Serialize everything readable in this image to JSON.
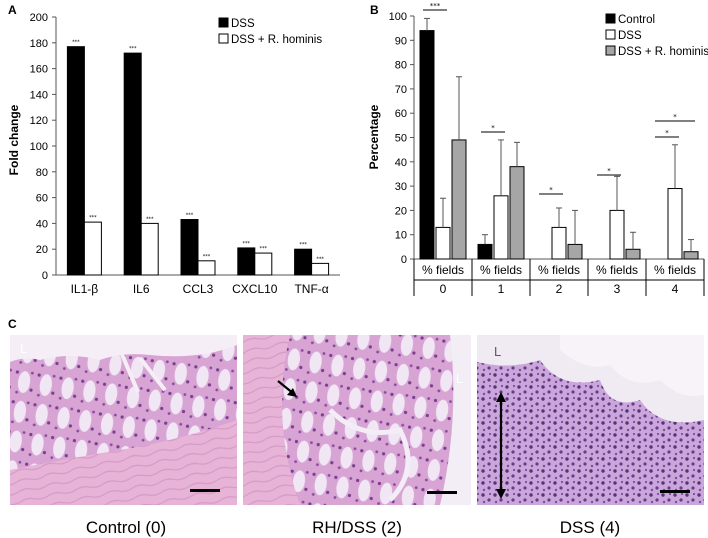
{
  "chart_data": [
    {
      "panel": "A",
      "type": "bar",
      "ylabel": "Fold change",
      "ylim": [
        0,
        200
      ],
      "yticks": [
        "0",
        "20",
        "40",
        "60",
        "80",
        "100",
        "120",
        "140",
        "160",
        "180",
        "200"
      ],
      "categories": [
        "IL1-β",
        "IL6",
        "CCL3",
        "CXCL10",
        "TNF-α"
      ],
      "series": [
        {
          "name": "DSS",
          "color": "#000000",
          "values": [
            177,
            172,
            43,
            21,
            20
          ]
        },
        {
          "name": "DSS + R. hominis",
          "color": "#ffffff",
          "values": [
            41,
            40,
            11,
            17,
            9
          ]
        }
      ],
      "significance": "***",
      "legend_position": "top-right"
    },
    {
      "panel": "B",
      "type": "bar",
      "ylabel": "Percentage",
      "ylim": [
        0,
        100
      ],
      "yticks": [
        "0",
        "10",
        "20",
        "30",
        "40",
        "50",
        "60",
        "70",
        "80",
        "90",
        "100"
      ],
      "categories": [
        {
          "label": "% fields",
          "sub": "0"
        },
        {
          "label": "% fields",
          "sub": "1"
        },
        {
          "label": "% fields",
          "sub": "2"
        },
        {
          "label": "% fields",
          "sub": "3"
        },
        {
          "label": "% fields",
          "sub": "4"
        }
      ],
      "series": [
        {
          "name": "Control",
          "color": "#000000",
          "values": [
            94,
            6,
            0,
            0,
            0
          ],
          "errors": [
            5,
            4,
            0,
            0,
            0
          ]
        },
        {
          "name": "DSS",
          "color": "#ffffff",
          "values": [
            13,
            26,
            13,
            20,
            29
          ],
          "errors": [
            12,
            23,
            8,
            14,
            18
          ]
        },
        {
          "name": "DSS + R. hominis",
          "color": "#a6a6a6",
          "values": [
            49,
            38,
            6,
            4,
            3
          ],
          "errors": [
            26,
            10,
            14,
            7,
            5
          ]
        }
      ],
      "annotations": [
        "***",
        "*",
        "*",
        "*",
        "*",
        "*"
      ],
      "legend_position": "top-right"
    }
  ],
  "panel_labels": {
    "a": "A",
    "b": "B",
    "c": "C"
  },
  "histology": {
    "images": [
      {
        "caption": "Control (0)",
        "lumen_label": "L"
      },
      {
        "caption": "RH/DSS (2)",
        "lumen_label": "L"
      },
      {
        "caption": "DSS (4)",
        "lumen_label": "L"
      }
    ]
  }
}
